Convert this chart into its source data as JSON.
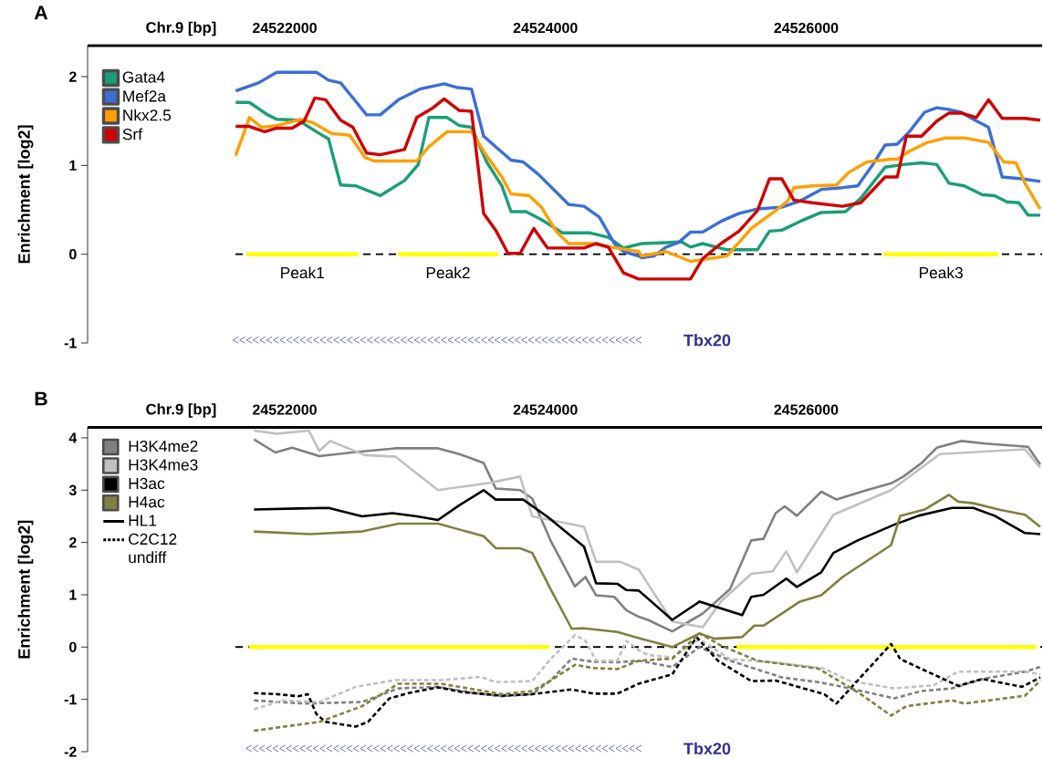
{
  "chart_data": [
    {
      "type": "line",
      "title": "A",
      "xlabel": "Chr.9 [bp]",
      "ylabel": "Enrichment [log2]",
      "xlim": [
        24520488,
        24527810
      ],
      "xticks": [
        24522000,
        24524000,
        24526000
      ],
      "ylim": [
        -1,
        2.35
      ],
      "yticks": [
        -1,
        0,
        1,
        2
      ],
      "legend": "top left",
      "series": [
        {
          "color": "#ffff00",
          "x": [
            24521706,
            24522565
          ],
          "values": [
            0,
            0
          ]
        },
        {
          "color": "#ffff00",
          "x": [
            24522868,
            24523638
          ],
          "values": [
            0,
            0
          ]
        },
        {
          "color": "#ffff00",
          "x": [
            24526594,
            24527474
          ],
          "values": [
            0,
            0
          ]
        },
        {
          "name": "Gata4",
          "color": "#1a9e77",
          "x": [
            24521624,
            24521729,
            24521869,
            24521939,
            24522103,
            24522243,
            24522336,
            24522429,
            24522546,
            24522733,
            24522919,
            24523024,
            24523106,
            24523246,
            24523339,
            24523433,
            24523549,
            24523666,
            24523736,
            24523852,
            24523969,
            24524132,
            24524343,
            24524482,
            24524599,
            24524739,
            24524926,
            24525043,
            24525113,
            24525206,
            24525393,
            24525626,
            24525719,
            24525813,
            24525953,
            24526116,
            24526302,
            24526419,
            24526606,
            24526746,
            24526886,
            24527002,
            24527096,
            24527212,
            24527352,
            24527446,
            24527539,
            24527632,
            24527702,
            24527796
          ],
          "values": [
            1.71,
            1.71,
            1.57,
            1.52,
            1.51,
            1.38,
            1.3,
            0.78,
            0.77,
            0.66,
            0.83,
            1.01,
            1.54,
            1.54,
            1.45,
            1.43,
            1.04,
            0.77,
            0.48,
            0.48,
            0.39,
            0.24,
            0.24,
            0.19,
            0.07,
            0.12,
            0.13,
            0.14,
            0.08,
            0.12,
            0.05,
            0.05,
            0.26,
            0.27,
            0.37,
            0.47,
            0.48,
            0.63,
            0.98,
            1.01,
            1.03,
            1.01,
            0.8,
            0.77,
            0.67,
            0.66,
            0.59,
            0.58,
            0.44,
            0.44
          ]
        },
        {
          "name": "Mef2a",
          "color": "#3b6fd6",
          "x": [
            24521624,
            24521799,
            24521939,
            24522243,
            24522336,
            24522429,
            24522546,
            24522628,
            24522733,
            24522873,
            24523036,
            24523223,
            24523316,
            24523433,
            24523526,
            24523619,
            24523736,
            24523829,
            24523946,
            24524179,
            24524296,
            24524413,
            24524529,
            24524599,
            24524716,
            24524739,
            24524833,
            24524926,
            24525019,
            24525113,
            24525206,
            24525346,
            24525486,
            24525626,
            24525813,
            24525953,
            24526116,
            24526279,
            24526396,
            24526512,
            24526606,
            24526699,
            24526792,
            24526909,
            24527002,
            24527096,
            24527189,
            24527282,
            24527399,
            24527504,
            24527656,
            24527796
          ],
          "values": [
            1.84,
            1.93,
            2.05,
            2.05,
            1.96,
            1.93,
            1.72,
            1.57,
            1.57,
            1.74,
            1.86,
            1.92,
            1.88,
            1.86,
            1.33,
            1.21,
            1.06,
            1.04,
            0.9,
            0.56,
            0.54,
            0.42,
            0.12,
            0.03,
            -0.02,
            -0.04,
            -0.02,
            0.08,
            0.13,
            0.25,
            0.25,
            0.37,
            0.46,
            0.51,
            0.53,
            0.6,
            0.73,
            0.75,
            0.77,
            1.01,
            1.23,
            1.24,
            1.38,
            1.6,
            1.65,
            1.63,
            1.6,
            1.52,
            1.43,
            0.87,
            0.85,
            0.82
          ]
        },
        {
          "name": "Nkx2.5",
          "color": "#ff9f00",
          "x": [
            24521624,
            24521729,
            24521823,
            24521939,
            24522126,
            24522219,
            24522359,
            24522499,
            24522616,
            24522686,
            24523013,
            24523106,
            24523246,
            24523433,
            24523549,
            24523666,
            24523736,
            24523876,
            24523969,
            24524086,
            24524179,
            24524366,
            24524506,
            24524716,
            24524739,
            24524926,
            24525113,
            24525393,
            24525579,
            24525766,
            24525859,
            24525906,
            24526046,
            24526233,
            24526326,
            24526466,
            24526652,
            24526699,
            24526792,
            24526932,
            24527072,
            24527212,
            24527399,
            24527516,
            24527609,
            24527679,
            24527796
          ],
          "values": [
            1.11,
            1.54,
            1.43,
            1.45,
            1.52,
            1.48,
            1.36,
            1.34,
            1.09,
            1.05,
            1.05,
            1.21,
            1.38,
            1.38,
            1.11,
            0.87,
            0.68,
            0.66,
            0.53,
            0.25,
            0.12,
            0.12,
            0.08,
            0.03,
            -0.02,
            0.03,
            -0.08,
            -0.02,
            0.29,
            0.49,
            0.6,
            0.75,
            0.77,
            0.78,
            0.92,
            1.04,
            1.07,
            1.07,
            1.16,
            1.26,
            1.31,
            1.31,
            1.26,
            1.04,
            1.03,
            0.8,
            0.51
          ]
        },
        {
          "name": "Srf",
          "color": "#d00000",
          "x": [
            24521624,
            24521729,
            24521846,
            24521939,
            24522056,
            24522149,
            24522231,
            24522313,
            24522429,
            24522523,
            24522628,
            24522733,
            24522919,
            24523013,
            24523129,
            24523223,
            24523339,
            24523433,
            24523526,
            24523619,
            24523713,
            24523806,
            24523911,
            24524016,
            24524296,
            24524389,
            24524482,
            24524599,
            24524716,
            24525113,
            24525206,
            24525346,
            24525486,
            24525626,
            24525719,
            24525813,
            24525906,
            24526046,
            24526279,
            24526419,
            24526606,
            24526699,
            24526769,
            24526886,
            24527002,
            24527096,
            24527189,
            24527306,
            24527399,
            24527504,
            24527679,
            24527796
          ],
          "values": [
            1.44,
            1.44,
            1.38,
            1.42,
            1.42,
            1.5,
            1.76,
            1.74,
            1.51,
            1.43,
            1.14,
            1.12,
            1.18,
            1.54,
            1.64,
            1.75,
            1.62,
            1.61,
            0.46,
            0.27,
            0.01,
            0.01,
            0.29,
            0.07,
            0.07,
            0.12,
            0.08,
            -0.21,
            -0.28,
            -0.28,
            -0.05,
            0.12,
            0.26,
            0.49,
            0.85,
            0.85,
            0.61,
            0.58,
            0.54,
            0.58,
            0.87,
            0.87,
            1.33,
            1.33,
            1.5,
            1.59,
            1.59,
            1.54,
            1.74,
            1.53,
            1.53,
            1.51
          ]
        }
      ],
      "ref_lines": [
        {
          "axis": "y",
          "value": 0,
          "color": "#000000",
          "line_style": "dashed"
        }
      ],
      "annotations": [
        {
          "text": "Peak1",
          "x": 24522135,
          "y": 0
        },
        {
          "text": "Peak2",
          "x": 24523253,
          "y": 0
        },
        {
          "text": "Peak3",
          "x": 24527034,
          "y": 0
        },
        "Tbx20"
      ]
    },
    {
      "type": "line",
      "title": "B",
      "xlabel": "Chr.9 [bp]",
      "ylabel": "Enrichment [log2]",
      "xlim": [
        24520488,
        24527810
      ],
      "xticks": [
        24522000,
        24524000,
        24526000
      ],
      "ylim": [
        -2,
        4.2
      ],
      "yticks": [
        -2,
        -1,
        0,
        1,
        2,
        3,
        4
      ],
      "legend": "top left",
      "series": [
        {
          "color": "#ffff00",
          "line_style": "solid",
          "x": [
            24521725,
            24524032
          ],
          "values": [
            0,
            0
          ]
        },
        {
          "color": "#ffff00",
          "line_style": "solid",
          "x": [
            24525467,
            24527768
          ],
          "values": [
            0,
            0
          ]
        },
        {
          "name": "H3K4me2",
          "color": "#808080",
          "line_style": "solid",
          "x": [
            24521764,
            24521928,
            24522056,
            24522266,
            24522546,
            24522849,
            24523176,
            24523339,
            24523526,
            24523619,
            24523806,
            24523899,
            24524039,
            24524226,
            24524307,
            24524389,
            24524529,
            24524622,
            24524716,
            24524786,
            24524973,
            24525206,
            24525416,
            24525579,
            24525673,
            24525766,
            24525836,
            24525929,
            24526116,
            24526233,
            24526466,
            24526652,
            24526746,
            24526886,
            24527002,
            24527189,
            24527376,
            24527702,
            24527796
          ],
          "values": [
            3.97,
            3.72,
            3.81,
            3.65,
            3.73,
            3.8,
            3.8,
            3.69,
            3.52,
            3.03,
            3.0,
            2.84,
            2.04,
            1.16,
            1.34,
            0.99,
            0.96,
            0.7,
            0.58,
            0.52,
            0.3,
            0.64,
            1.11,
            2.04,
            2.07,
            2.56,
            2.69,
            2.51,
            2.97,
            2.82,
            3.0,
            3.13,
            3.26,
            3.52,
            3.81,
            3.94,
            3.89,
            3.83,
            3.49
          ]
        },
        {
          "name": "H3K4me3",
          "color": "#c0c0c0",
          "line_style": "solid",
          "x": [
            24521764,
            24521939,
            24522184,
            24522266,
            24522348,
            24522616,
            24522849,
            24523176,
            24523573,
            24523806,
            24523899,
            24524296,
            24524389,
            24524576,
            24524716,
            24524973,
            24525206,
            24525346,
            24525579,
            24525743,
            24525848,
            24525929,
            24526209,
            24526652,
            24527026,
            24527679,
            24527796
          ],
          "values": [
            4.14,
            4.08,
            4.14,
            3.75,
            3.94,
            3.67,
            3.64,
            3.0,
            3.14,
            3.26,
            2.5,
            2.3,
            1.63,
            1.63,
            1.48,
            0.49,
            0.38,
            0.87,
            1.4,
            1.45,
            1.83,
            1.43,
            2.53,
            3.0,
            3.69,
            3.78,
            3.43
          ]
        },
        {
          "name": "H3ac",
          "color": "#000000",
          "line_style": "solid",
          "x": [
            24521764,
            24522103,
            24522336,
            24522593,
            24522826,
            24523013,
            24523176,
            24523339,
            24523526,
            24523619,
            24523829,
            24524016,
            24524296,
            24524389,
            24524552,
            24524622,
            24524716,
            24524973,
            24525183,
            24525509,
            24525579,
            24525673,
            24525848,
            24525929,
            24526116,
            24526209,
            24526396,
            24526676,
            24526862,
            24527119,
            24527282,
            24527446,
            24527679,
            24527796
          ],
          "values": [
            2.63,
            2.65,
            2.66,
            2.5,
            2.56,
            2.5,
            2.43,
            2.71,
            3.0,
            2.82,
            2.82,
            2.49,
            1.92,
            1.22,
            1.21,
            1.09,
            1.08,
            0.52,
            0.87,
            0.61,
            0.96,
            1.0,
            1.31,
            1.15,
            1.43,
            1.8,
            2.04,
            2.34,
            2.51,
            2.66,
            2.66,
            2.51,
            2.18,
            2.16
          ]
        },
        {
          "name": "H4ac",
          "color": "#808040",
          "line_style": "solid",
          "x": [
            24521764,
            24522196,
            24522593,
            24522873,
            24523176,
            24523526,
            24523619,
            24523806,
            24523899,
            24524039,
            24524202,
            24524296,
            24524552,
            24524716,
            24524973,
            24525183,
            24525299,
            24525509,
            24525603,
            24525673,
            24525953,
            24526116,
            24526279,
            24526652,
            24526722,
            24526909,
            24527096,
            24527166,
            24527282,
            24527492,
            24527679,
            24527796
          ],
          "values": [
            2.21,
            2.16,
            2.21,
            2.36,
            2.36,
            2.12,
            1.89,
            1.89,
            1.8,
            1.11,
            0.35,
            0.36,
            0.29,
            0.17,
            0.0,
            0.26,
            0.16,
            0.19,
            0.41,
            0.41,
            0.87,
            0.99,
            1.34,
            1.95,
            2.51,
            2.63,
            2.91,
            2.78,
            2.75,
            2.62,
            2.53,
            2.3
          ]
        },
        {
          "color": "#808080",
          "line_style": "dashed",
          "x": [
            24521764,
            24522149,
            24522593,
            24522873,
            24523176,
            24523433,
            24523666,
            24523899,
            24524039,
            24524202,
            24524366,
            24524552,
            24524716,
            24524973,
            24525183,
            24525416,
            24525813,
            24526093,
            24526279,
            24526676,
            24526886,
            24527119,
            24527352,
            24527679,
            24527796
          ],
          "values": [
            -1.02,
            -1.08,
            -1.05,
            -0.79,
            -0.76,
            -0.87,
            -0.94,
            -0.9,
            -0.64,
            -0.22,
            -0.28,
            -0.29,
            -0.26,
            -0.38,
            0.0,
            -0.26,
            -0.58,
            -0.67,
            -0.76,
            -0.98,
            -0.84,
            -0.79,
            -0.61,
            -0.47,
            -0.38
          ]
        },
        {
          "color": "#c0c0c0",
          "line_style": "dashed",
          "x": [
            24521764,
            24521986,
            24522266,
            24522546,
            24522849,
            24523199,
            24523503,
            24523619,
            24523899,
            24524039,
            24524226,
            24524307,
            24524389,
            24524552,
            24524622,
            24524716,
            24524786,
            24524973,
            24525183,
            24525416,
            24525743,
            24526139,
            24526326,
            24526676,
            24526979,
            24527166,
            24527679,
            24527796
          ],
          "values": [
            -1.19,
            -1.02,
            -1.05,
            -0.76,
            -0.63,
            -0.63,
            -0.57,
            -0.67,
            -0.65,
            -0.23,
            0.23,
            0.12,
            -0.26,
            -0.26,
            0.12,
            -0.06,
            -0.15,
            -0.2,
            0.15,
            -0.23,
            -0.29,
            -0.41,
            -0.64,
            -0.79,
            -0.73,
            -0.47,
            -0.47,
            -0.52
          ]
        },
        {
          "color": "#000000",
          "line_style": "dashed",
          "x": [
            24521764,
            24521939,
            24522103,
            24522177,
            24522243,
            24522313,
            24522546,
            24522639,
            24522803,
            24522966,
            24523176,
            24523363,
            24523666,
            24523899,
            24524202,
            24524366,
            24524552,
            24524716,
            24524973,
            24525159,
            24525323,
            24525579,
            24525766,
            24526139,
            24526233,
            24526652,
            24526722,
            24527166,
            24527352,
            24527656,
            24527796
          ],
          "values": [
            -0.88,
            -0.9,
            -0.94,
            -0.9,
            -1.28,
            -1.43,
            -1.52,
            -1.43,
            -0.98,
            -0.87,
            -0.77,
            -0.86,
            -0.93,
            -0.9,
            -0.81,
            -0.89,
            -0.89,
            -0.7,
            -0.52,
            0.19,
            -0.26,
            -0.65,
            -0.64,
            -0.9,
            -1.08,
            0.06,
            -0.23,
            -0.74,
            -0.61,
            -0.76,
            -0.58
          ]
        },
        {
          "color": "#808040",
          "line_style": "dashed",
          "x": [
            24521764,
            24522266,
            24522593,
            24522873,
            24523199,
            24523666,
            24523899,
            24524039,
            24524226,
            24524366,
            24524552,
            24524716,
            24524973,
            24525183,
            24525346,
            24525626,
            24526093,
            24526419,
            24526652,
            24526769,
            24527119,
            24527212,
            24527679,
            24527796
          ],
          "values": [
            -1.6,
            -1.43,
            -1.13,
            -0.7,
            -0.7,
            -0.9,
            -0.84,
            -0.64,
            -0.34,
            -0.4,
            -0.42,
            -0.26,
            -0.22,
            0.26,
            0.03,
            -0.26,
            -0.41,
            -0.9,
            -1.31,
            -1.13,
            -1.02,
            -1.08,
            -0.93,
            -0.64
          ]
        }
      ],
      "ref_lines": [
        {
          "axis": "y",
          "value": 0,
          "color": "#000000",
          "line_style": "dashed"
        }
      ],
      "annotations": [
        "HL1",
        "C2C12 undiff",
        "Tbx20"
      ]
    }
  ]
}
